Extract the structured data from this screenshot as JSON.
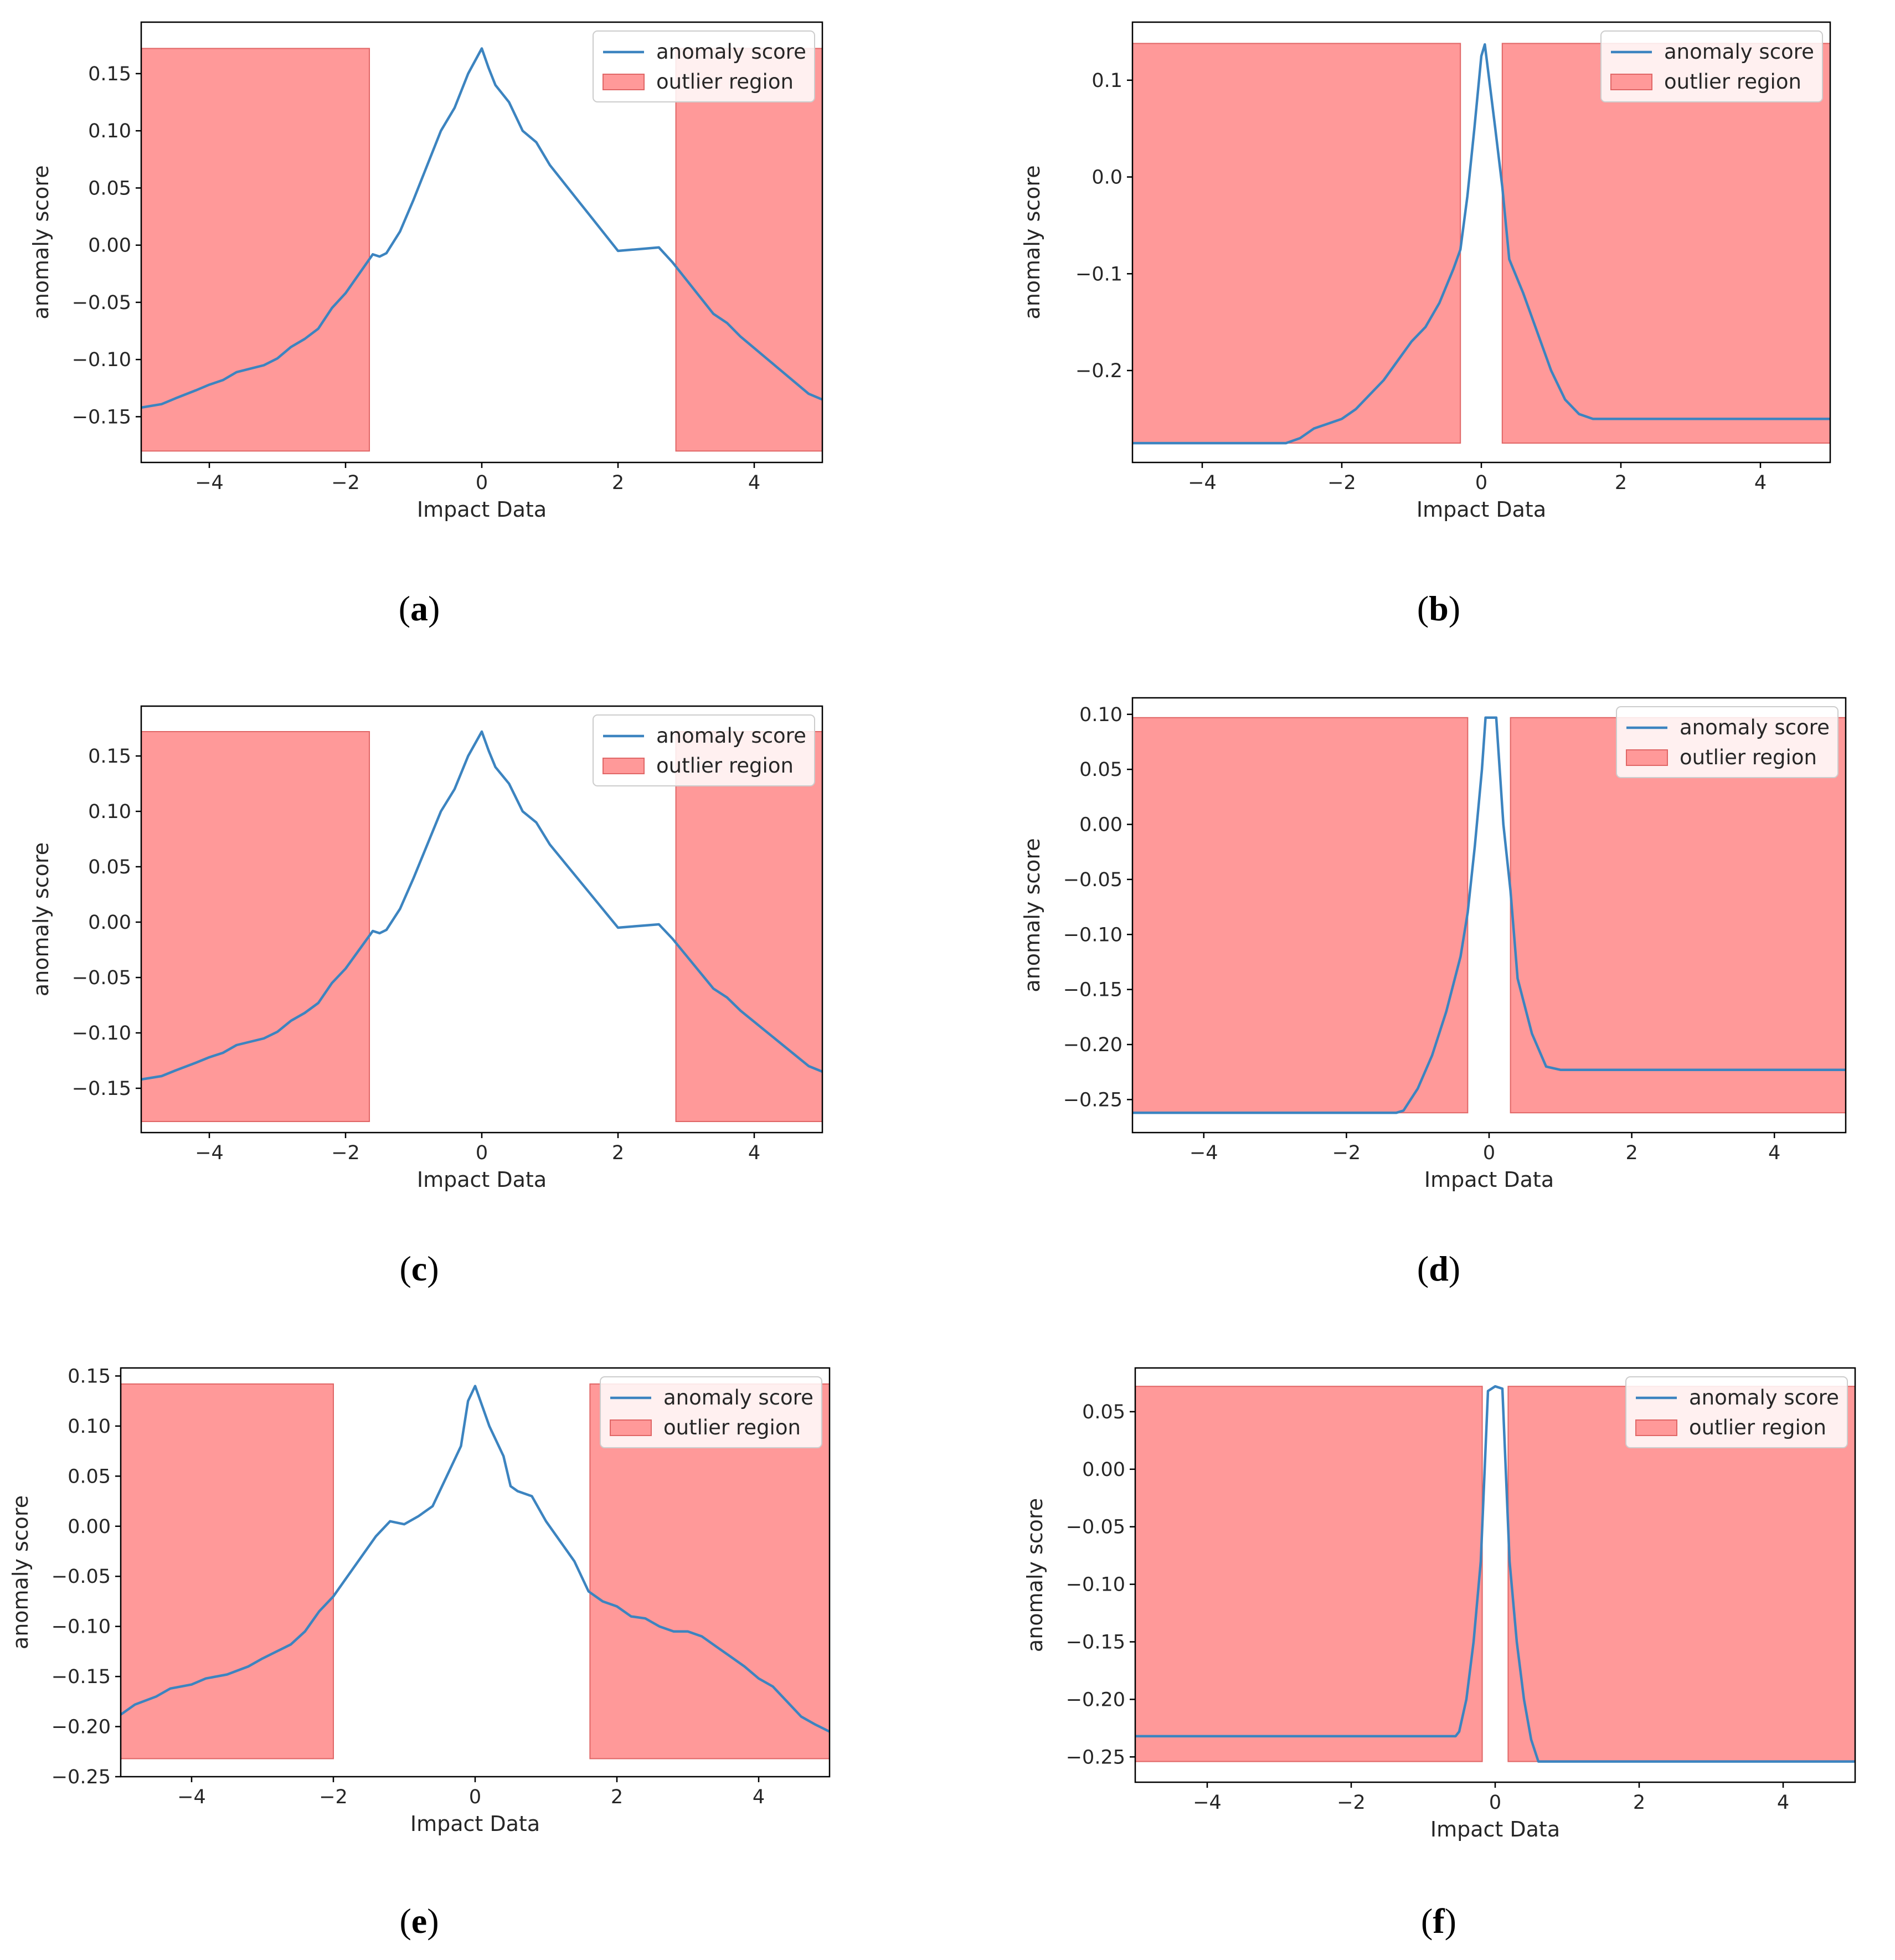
{
  "figure": {
    "colors": {
      "line": "#3c84c0",
      "region_fill": "#ff9999",
      "region_edge": "#e06666",
      "axis": "#000000"
    },
    "charts": [
      {
        "label": "a",
        "type": "line",
        "xlabel": "Impact Data",
        "ylabel": "anomaly score",
        "xlim": [
          -5,
          5
        ],
        "ylim": [
          -0.19,
          0.195
        ],
        "xticks": [
          -4,
          -2,
          0,
          2,
          4
        ],
        "xtick_labels": [
          "−4",
          "−2",
          "0",
          "2",
          "4"
        ],
        "yticks": [
          -0.15,
          -0.1,
          -0.05,
          0.0,
          0.05,
          0.1,
          0.15
        ],
        "ytick_labels": [
          "−0.15",
          "−0.10",
          "−0.05",
          "0.00",
          "0.05",
          "0.10",
          "0.15"
        ],
        "legend": [
          "anomaly score",
          "outlier region"
        ],
        "legend_position": "top-right",
        "regions": [
          [
            -5,
            -1.65
          ],
          [
            2.85,
            5
          ]
        ],
        "region_y": [
          -0.18,
          0.172
        ],
        "series": [
          {
            "name": "anomaly score",
            "x": [
              -5,
              -4.7,
              -4.5,
              -4.2,
              -4.0,
              -3.8,
              -3.6,
              -3.4,
              -3.2,
              -3.0,
              -2.8,
              -2.6,
              -2.4,
              -2.2,
              -2.0,
              -1.8,
              -1.6,
              -1.5,
              -1.4,
              -1.2,
              -1.0,
              -0.8,
              -0.6,
              -0.4,
              -0.2,
              0.0,
              0.1,
              0.2,
              0.4,
              0.6,
              0.7,
              0.8,
              1.0,
              1.2,
              1.4,
              1.6,
              1.8,
              2.0,
              2.2,
              2.4,
              2.6,
              2.8,
              3.0,
              3.2,
              3.4,
              3.6,
              3.8,
              4.0,
              4.2,
              4.4,
              4.6,
              4.8,
              5.0
            ],
            "y": [
              -0.142,
              -0.139,
              -0.134,
              -0.127,
              -0.122,
              -0.118,
              -0.111,
              -0.108,
              -0.105,
              -0.099,
              -0.089,
              -0.082,
              -0.073,
              -0.055,
              -0.042,
              -0.025,
              -0.008,
              -0.01,
              -0.007,
              0.012,
              0.04,
              0.07,
              0.1,
              0.12,
              0.15,
              0.172,
              0.155,
              0.14,
              0.125,
              0.1,
              0.095,
              0.09,
              0.07,
              0.055,
              0.04,
              0.025,
              0.01,
              -0.005,
              -0.004,
              -0.003,
              -0.002,
              -0.015,
              -0.03,
              -0.045,
              -0.06,
              -0.068,
              -0.08,
              -0.09,
              -0.1,
              -0.11,
              -0.12,
              -0.13,
              -0.135
            ]
          }
        ]
      },
      {
        "label": "b",
        "type": "line",
        "xlabel": "Impact Data",
        "ylabel": "anomaly score",
        "xlim": [
          -5,
          5
        ],
        "ylim": [
          -0.295,
          0.16
        ],
        "xticks": [
          -4,
          -2,
          0,
          2,
          4
        ],
        "xtick_labels": [
          "−4",
          "−2",
          "0",
          "2",
          "4"
        ],
        "yticks": [
          -0.2,
          -0.1,
          0.0,
          0.1
        ],
        "ytick_labels": [
          "−0.2",
          "−0.1",
          "0.0",
          "0.1"
        ],
        "legend": [
          "anomaly score",
          "outlier region"
        ],
        "legend_position": "top-right",
        "regions": [
          [
            -5,
            -0.3
          ],
          [
            0.3,
            5
          ]
        ],
        "region_y": [
          -0.275,
          0.138
        ],
        "series": [
          {
            "name": "anomaly score",
            "x": [
              -5,
              -4,
              -3,
              -2.8,
              -2.6,
              -2.4,
              -2.2,
              -2.0,
              -1.8,
              -1.6,
              -1.4,
              -1.2,
              -1.0,
              -0.8,
              -0.6,
              -0.4,
              -0.3,
              -0.2,
              -0.1,
              0.0,
              0.05,
              0.2,
              0.3,
              0.4,
              0.6,
              0.8,
              1.0,
              1.2,
              1.4,
              1.6,
              1.8,
              2.0,
              3,
              4,
              5
            ],
            "y": [
              -0.275,
              -0.275,
              -0.275,
              -0.275,
              -0.27,
              -0.26,
              -0.255,
              -0.25,
              -0.24,
              -0.225,
              -0.21,
              -0.19,
              -0.17,
              -0.155,
              -0.13,
              -0.095,
              -0.075,
              -0.02,
              0.05,
              0.125,
              0.137,
              0.05,
              -0.01,
              -0.085,
              -0.12,
              -0.16,
              -0.2,
              -0.23,
              -0.245,
              -0.25,
              -0.25,
              -0.25,
              -0.25,
              -0.25,
              -0.25
            ]
          }
        ]
      },
      {
        "label": "c",
        "type": "line",
        "xlabel": "Impact Data",
        "ylabel": "anomaly score",
        "xlim": [
          -5,
          5
        ],
        "ylim": [
          -0.19,
          0.195
        ],
        "xticks": [
          -4,
          -2,
          0,
          2,
          4
        ],
        "xtick_labels": [
          "−4",
          "−2",
          "0",
          "2",
          "4"
        ],
        "yticks": [
          -0.15,
          -0.1,
          -0.05,
          0.0,
          0.05,
          0.1,
          0.15
        ],
        "ytick_labels": [
          "−0.15",
          "−0.10",
          "−0.05",
          "0.00",
          "0.05",
          "0.10",
          "0.15"
        ],
        "legend": [
          "anomaly score",
          "outlier region"
        ],
        "legend_position": "top-right",
        "regions": [
          [
            -5,
            -1.65
          ],
          [
            2.85,
            5
          ]
        ],
        "region_y": [
          -0.18,
          0.172
        ],
        "series": [
          {
            "name": "anomaly score",
            "x": [
              -5,
              -4.7,
              -4.5,
              -4.2,
              -4.0,
              -3.8,
              -3.6,
              -3.4,
              -3.2,
              -3.0,
              -2.8,
              -2.6,
              -2.4,
              -2.2,
              -2.0,
              -1.8,
              -1.6,
              -1.5,
              -1.4,
              -1.2,
              -1.0,
              -0.8,
              -0.6,
              -0.4,
              -0.2,
              0.0,
              0.1,
              0.2,
              0.4,
              0.6,
              0.7,
              0.8,
              1.0,
              1.2,
              1.4,
              1.6,
              1.8,
              2.0,
              2.2,
              2.4,
              2.6,
              2.8,
              3.0,
              3.2,
              3.4,
              3.6,
              3.8,
              4.0,
              4.2,
              4.4,
              4.6,
              4.8,
              5.0
            ],
            "y": [
              -0.142,
              -0.139,
              -0.134,
              -0.127,
              -0.122,
              -0.118,
              -0.111,
              -0.108,
              -0.105,
              -0.099,
              -0.089,
              -0.082,
              -0.073,
              -0.055,
              -0.042,
              -0.025,
              -0.008,
              -0.01,
              -0.007,
              0.012,
              0.04,
              0.07,
              0.1,
              0.12,
              0.15,
              0.172,
              0.155,
              0.14,
              0.125,
              0.1,
              0.095,
              0.09,
              0.07,
              0.055,
              0.04,
              0.025,
              0.01,
              -0.005,
              -0.004,
              -0.003,
              -0.002,
              -0.015,
              -0.03,
              -0.045,
              -0.06,
              -0.068,
              -0.08,
              -0.09,
              -0.1,
              -0.11,
              -0.12,
              -0.13,
              -0.135
            ]
          }
        ]
      },
      {
        "label": "d",
        "type": "line",
        "xlabel": "Impact Data",
        "ylabel": "anomaly score",
        "xlim": [
          -5,
          5
        ],
        "ylim": [
          -0.28,
          0.115
        ],
        "xticks": [
          -4,
          -2,
          0,
          2,
          4
        ],
        "xtick_labels": [
          "−4",
          "−2",
          "0",
          "2",
          "4"
        ],
        "yticks": [
          -0.25,
          -0.2,
          -0.15,
          -0.1,
          -0.05,
          0.0,
          0.05,
          0.1
        ],
        "ytick_labels": [
          "−0.25",
          "−0.20",
          "−0.15",
          "−0.10",
          "−0.05",
          "0.00",
          "0.05",
          "0.10"
        ],
        "legend": [
          "anomaly score",
          "outlier region"
        ],
        "legend_position": "top-right",
        "regions": [
          [
            -5,
            -0.3
          ],
          [
            0.3,
            5
          ]
        ],
        "region_y": [
          -0.262,
          0.097
        ],
        "series": [
          {
            "name": "anomaly score",
            "x": [
              -5,
              -3,
              -2,
              -1.3,
              -1.2,
              -1.0,
              -0.8,
              -0.6,
              -0.4,
              -0.3,
              -0.2,
              -0.1,
              -0.05,
              0.0,
              0.1,
              0.2,
              0.3,
              0.4,
              0.6,
              0.8,
              1.0,
              2,
              3,
              4,
              5
            ],
            "y": [
              -0.262,
              -0.262,
              -0.262,
              -0.262,
              -0.26,
              -0.24,
              -0.21,
              -0.17,
              -0.12,
              -0.08,
              -0.02,
              0.05,
              0.097,
              0.097,
              0.097,
              0.0,
              -0.06,
              -0.14,
              -0.19,
              -0.22,
              -0.223,
              -0.223,
              -0.223,
              -0.223,
              -0.223
            ]
          }
        ]
      },
      {
        "label": "e",
        "type": "line",
        "xlabel": "Impact Data",
        "ylabel": "anomaly score",
        "xlim": [
          -5,
          5
        ],
        "ylim": [
          -0.25,
          0.158
        ],
        "xticks": [
          -4,
          -2,
          0,
          2,
          4
        ],
        "xtick_labels": [
          "−4",
          "−2",
          "0",
          "2",
          "4"
        ],
        "yticks": [
          -0.25,
          -0.2,
          -0.15,
          -0.1,
          -0.05,
          0.0,
          0.05,
          0.1,
          0.15
        ],
        "ytick_labels": [
          "−0.25",
          "−0.20",
          "−0.15",
          "−0.10",
          "−0.05",
          "0.00",
          "0.05",
          "0.10",
          "0.15"
        ],
        "legend": [
          "anomaly score",
          "outlier region"
        ],
        "legend_position": "top-right",
        "regions": [
          [
            -5,
            -2.0
          ],
          [
            1.62,
            5
          ]
        ],
        "region_y": [
          -0.232,
          0.142
        ],
        "series": [
          {
            "name": "anomaly score",
            "x": [
              -5,
              -4.8,
              -4.5,
              -4.3,
              -4.0,
              -3.8,
              -3.5,
              -3.2,
              -3.0,
              -2.8,
              -2.6,
              -2.4,
              -2.2,
              -2.0,
              -1.8,
              -1.6,
              -1.4,
              -1.2,
              -1.0,
              -0.8,
              -0.6,
              -0.4,
              -0.2,
              -0.1,
              0.0,
              0.1,
              0.2,
              0.4,
              0.5,
              0.6,
              0.8,
              1.0,
              1.2,
              1.4,
              1.6,
              1.8,
              2.0,
              2.2,
              2.4,
              2.6,
              2.8,
              3.0,
              3.2,
              3.4,
              3.6,
              3.8,
              4.0,
              4.2,
              4.4,
              4.6,
              4.8,
              5.0
            ],
            "y": [
              -0.188,
              -0.178,
              -0.17,
              -0.162,
              -0.158,
              -0.152,
              -0.148,
              -0.14,
              -0.132,
              -0.125,
              -0.118,
              -0.105,
              -0.085,
              -0.07,
              -0.05,
              -0.03,
              -0.01,
              0.005,
              0.002,
              0.01,
              0.02,
              0.05,
              0.08,
              0.125,
              0.14,
              0.12,
              0.1,
              0.07,
              0.04,
              0.035,
              0.03,
              0.005,
              -0.015,
              -0.035,
              -0.065,
              -0.075,
              -0.08,
              -0.09,
              -0.092,
              -0.1,
              -0.105,
              -0.105,
              -0.11,
              -0.12,
              -0.13,
              -0.14,
              -0.152,
              -0.16,
              -0.175,
              -0.19,
              -0.198,
              -0.205
            ]
          }
        ]
      },
      {
        "label": "f",
        "type": "line",
        "xlabel": "Impact Data",
        "ylabel": "anomaly score",
        "xlim": [
          -5,
          5
        ],
        "ylim": [
          -0.272,
          0.088
        ],
        "xticks": [
          -4,
          -2,
          0,
          2,
          4
        ],
        "xtick_labels": [
          "−4",
          "−2",
          "0",
          "2",
          "4"
        ],
        "yticks": [
          -0.25,
          -0.2,
          -0.15,
          -0.1,
          -0.05,
          0.0,
          0.05
        ],
        "ytick_labels": [
          "−0.25",
          "−0.20",
          "−0.15",
          "−0.10",
          "−0.05",
          "0.00",
          "0.05"
        ],
        "legend": [
          "anomaly score",
          "outlier region"
        ],
        "legend_position": "top-right",
        "regions": [
          [
            -5,
            -0.18
          ],
          [
            0.18,
            5
          ]
        ],
        "region_y": [
          -0.254,
          0.072
        ],
        "series": [
          {
            "name": "anomaly score",
            "x": [
              -5,
              -3,
              -1,
              -0.55,
              -0.5,
              -0.4,
              -0.3,
              -0.2,
              -0.1,
              0.0,
              0.1,
              0.2,
              0.3,
              0.4,
              0.5,
              0.6,
              0.7,
              1,
              2,
              3,
              4,
              5
            ],
            "y": [
              -0.232,
              -0.232,
              -0.232,
              -0.232,
              -0.228,
              -0.2,
              -0.15,
              -0.08,
              0.068,
              0.072,
              0.07,
              -0.08,
              -0.15,
              -0.2,
              -0.235,
              -0.254,
              -0.254,
              -0.254,
              -0.254,
              -0.254,
              -0.254,
              -0.254
            ]
          }
        ]
      }
    ]
  }
}
